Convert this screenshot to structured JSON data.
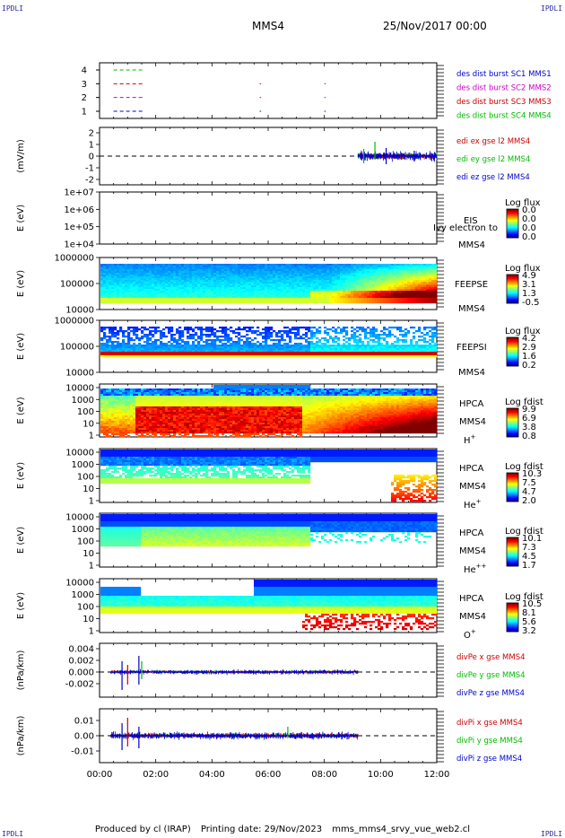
{
  "corners": {
    "tl": "IPDLI",
    "tr": "IPDLI",
    "bl": "IPDLI",
    "br": "IPDLI"
  },
  "header": {
    "spacecraft": "MMS4",
    "datetime": "25/Nov/2017 00:00"
  },
  "footer": {
    "produced": "Produced by cl (IRAP)",
    "printed": "Printing date: 29/Nov/2023",
    "file": "mms_mms4_srvy_vue_web2.cl"
  },
  "chart_data": [
    {
      "id": "burst",
      "type": "scatter",
      "yticks": [
        "1",
        "2",
        "3",
        "4"
      ],
      "legend": [
        {
          "text": "des dist burst SC1 MMS1",
          "color": "#0000cc"
        },
        {
          "text": "des dist burst SC2 MMS2",
          "color": "#cc00cc"
        },
        {
          "text": "des dist burst SC3 MMS3",
          "color": "#cc0000"
        },
        {
          "text": "des dist burst SC4 MMS4",
          "color": "#00bb00"
        }
      ],
      "series": [
        {
          "level": 4,
          "color": "#00bb00",
          "x": [
            [
              0.5,
              1.6
            ]
          ]
        },
        {
          "level": 3,
          "color": "#cc0000",
          "x": [
            [
              0.5,
              1.6
            ],
            [
              5.7,
              5.75
            ],
            [
              8.0,
              8.05
            ]
          ]
        },
        {
          "level": 2,
          "color": "#cc00cc",
          "x": [
            [
              0.5,
              1.6
            ],
            [
              5.7,
              5.75
            ],
            [
              8.0,
              8.05
            ]
          ]
        },
        {
          "level": 1,
          "color": "#0000cc",
          "x": [
            [
              0.5,
              1.6
            ],
            [
              5.7,
              5.75
            ],
            [
              8.0,
              8.05
            ]
          ]
        }
      ]
    },
    {
      "id": "edi",
      "type": "line",
      "ylabel": "(mV/m)",
      "yticks": [
        "2",
        "1",
        "0",
        "-1",
        "-2"
      ],
      "legend": [
        {
          "text": "edi ex gse l2 MMS4",
          "color": "#cc0000"
        },
        {
          "text": "edi ey gse l2 MMS4",
          "color": "#00bb00"
        },
        {
          "text": "edi ez gse l2 MMS4",
          "color": "#0000cc"
        }
      ],
      "data_range_hours": [
        9.2,
        12.0
      ]
    },
    {
      "id": "eis",
      "type": "heatmap",
      "ylabel": "E (eV)",
      "yticks": [
        "1e+07",
        "1e+06",
        "1e+05",
        "1e+04"
      ],
      "labels": [
        "EIS",
        "Ivy electron to",
        "MMS4"
      ],
      "cbar_title": "Log flux",
      "cbar_ticks": [
        "0.0",
        "0.0",
        "0.0",
        "0.0"
      ]
    },
    {
      "id": "feepse",
      "type": "heatmap",
      "ylabel": "E (eV)",
      "yticks": [
        "1000000",
        "100000",
        "10000"
      ],
      "labels": [
        "FEEPSE",
        "MMS4"
      ],
      "cbar_title": "Log flux",
      "cbar_ticks": [
        "4.9",
        "3.1",
        "1.3",
        "-0.5"
      ]
    },
    {
      "id": "feepsi",
      "type": "heatmap",
      "ylabel": "E (eV)",
      "yticks": [
        "1000000",
        "100000",
        "10000"
      ],
      "labels": [
        "FEEPSI",
        "MMS4"
      ],
      "cbar_title": "Log flux",
      "cbar_ticks": [
        "4.2",
        "2.9",
        "1.6",
        "0.2"
      ]
    },
    {
      "id": "hpca_h",
      "type": "heatmap",
      "ylabel": "E (eV)",
      "yticks": [
        "10000",
        "1000",
        "100",
        "10",
        "1"
      ],
      "labels": [
        "HPCA",
        "MMS4",
        "H+"
      ],
      "cbar_title": "Log fdist",
      "cbar_ticks": [
        "9.9",
        "6.9",
        "3.8",
        "0.8"
      ]
    },
    {
      "id": "hpca_he",
      "type": "heatmap",
      "ylabel": "E (eV)",
      "yticks": [
        "10000",
        "1000",
        "100",
        "10",
        "1"
      ],
      "labels": [
        "HPCA",
        "MMS4",
        "He+"
      ],
      "cbar_title": "Log fdist",
      "cbar_ticks": [
        "10.3",
        "7.5",
        "4.7",
        "2.0"
      ]
    },
    {
      "id": "hpca_hepp",
      "type": "heatmap",
      "ylabel": "E (eV)",
      "yticks": [
        "10000",
        "1000",
        "100",
        "10",
        "1"
      ],
      "labels": [
        "HPCA",
        "MMS4",
        "He++"
      ],
      "cbar_title": "Log fdist",
      "cbar_ticks": [
        "10.1",
        "7.3",
        "4.5",
        "1.7"
      ]
    },
    {
      "id": "hpca_o",
      "type": "heatmap",
      "ylabel": "E (eV)",
      "yticks": [
        "10000",
        "1000",
        "100",
        "10",
        "1"
      ],
      "labels": [
        "HPCA",
        "MMS4",
        "O+"
      ],
      "cbar_title": "Log fdist",
      "cbar_ticks": [
        "10.5",
        "8.1",
        "5.6",
        "3.2"
      ]
    },
    {
      "id": "divpe",
      "type": "line",
      "ylabel": "(nPa/km)",
      "yticks": [
        "0.004",
        "0.002",
        "0.000",
        "-0.002"
      ],
      "legend": [
        {
          "text": "divPe x gse MMS4",
          "color": "#cc0000"
        },
        {
          "text": "divPe y gse MMS4",
          "color": "#00bb00"
        },
        {
          "text": "divPe z gse MMS4",
          "color": "#0000cc"
        }
      ],
      "data_range_hours": [
        0.4,
        9.2
      ]
    },
    {
      "id": "divpi",
      "type": "line",
      "ylabel": "(nPa/km)",
      "yticks": [
        "0.01",
        "0.00",
        "-0.01"
      ],
      "legend": [
        {
          "text": "divPi x gse MMS4",
          "color": "#cc0000"
        },
        {
          "text": "divPi y gse MMS4",
          "color": "#00bb00"
        },
        {
          "text": "divPi z gse MMS4",
          "color": "#0000cc"
        }
      ],
      "data_range_hours": [
        0.4,
        9.2
      ]
    }
  ],
  "x_axis": {
    "range_hours": [
      0,
      12
    ],
    "ticks": [
      "00:00",
      "02:00",
      "04:00",
      "06:00",
      "08:00",
      "10:00",
      "12:00"
    ]
  }
}
